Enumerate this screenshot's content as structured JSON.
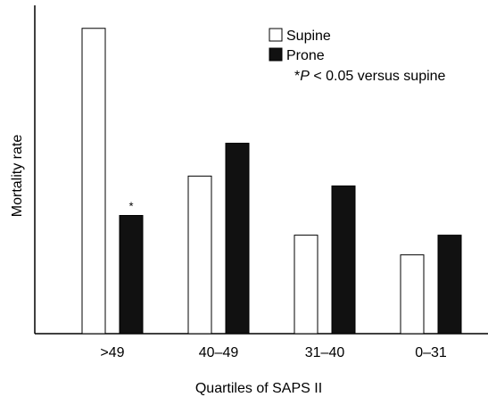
{
  "chart_data": {
    "type": "bar",
    "title": "",
    "xlabel": "Quartiles of SAPS II",
    "ylabel": "Mortality rate",
    "categories": [
      ">49",
      "40–49",
      "31–40",
      "0–31"
    ],
    "series": [
      {
        "name": "Supine",
        "color": "#ffffff",
        "values": [
          0.93,
          0.48,
          0.3,
          0.24
        ]
      },
      {
        "name": "Prone",
        "color": "#111111",
        "values": [
          0.36,
          0.58,
          0.45,
          0.3
        ]
      }
    ],
    "ylim": [
      0,
      1
    ],
    "y_ticks_shown": false,
    "grid": false,
    "legend_position": "top-right",
    "bar_annotations": [
      {
        "series": 1,
        "category": 0,
        "text": "*"
      }
    ],
    "annotation_parts": [
      "*",
      "P",
      " < 0.05 versus supine"
    ]
  }
}
